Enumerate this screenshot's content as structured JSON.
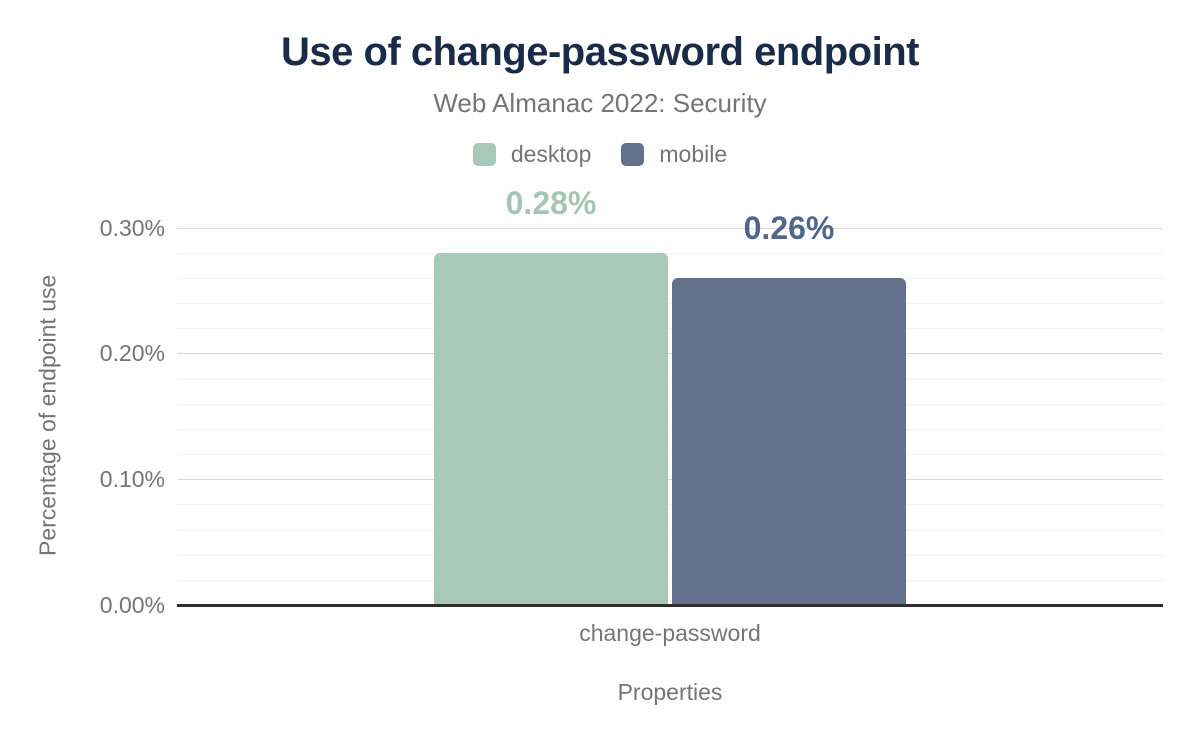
{
  "chart_data": {
    "type": "bar",
    "title": "Use of change-password endpoint",
    "subtitle": "Web Almanac 2022: Security",
    "categories": [
      "change-password"
    ],
    "series": [
      {
        "name": "desktop",
        "values": [
          0.28
        ],
        "labels": [
          "0.28%"
        ],
        "color": "#a8c9ba",
        "label_color": "#a4c6b6"
      },
      {
        "name": "mobile",
        "values": [
          0.26
        ],
        "labels": [
          "0.26%"
        ],
        "color": "#64718c",
        "label_color": "#50668c"
      }
    ],
    "xlabel": "Properties",
    "ylabel": "Percentage of endpoint use",
    "ylim": [
      0,
      0.3
    ],
    "yticks": [
      {
        "value": 0.0,
        "label": "0.00%"
      },
      {
        "value": 0.1,
        "label": "0.10%"
      },
      {
        "value": 0.2,
        "label": "0.20%"
      },
      {
        "value": 0.3,
        "label": "0.30%"
      }
    ],
    "minor_grid_step": 0.02,
    "grid": true,
    "legend_position": "top"
  },
  "colors": {
    "title": "#1a2b49",
    "muted_text": "#757575",
    "axis_line": "#2e2e2e",
    "grid_major": "#d9d9d9",
    "grid_minor": "#f2f2f2",
    "background": "#ffffff"
  }
}
